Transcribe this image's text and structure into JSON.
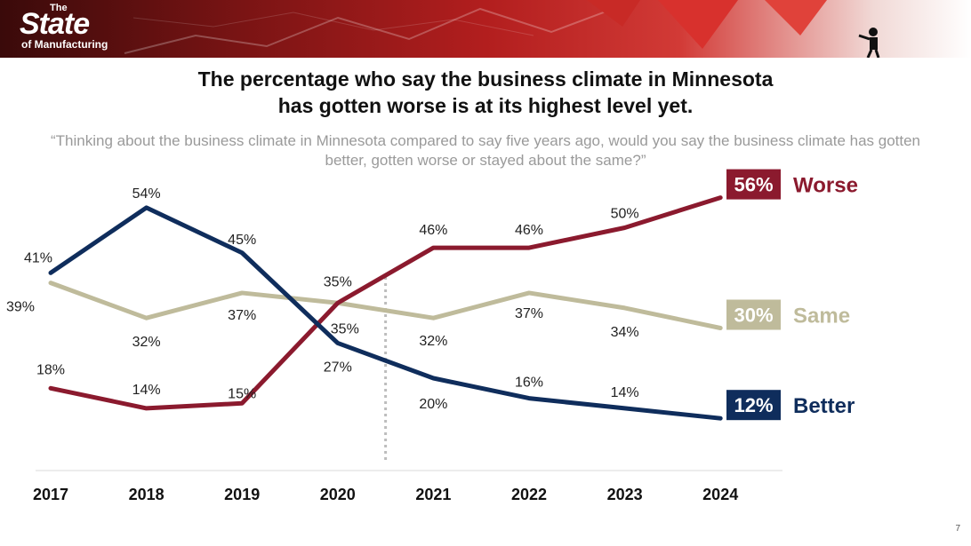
{
  "banner": {
    "logo_the": "The",
    "logo_state": "State",
    "logo_mfg": "of Manufacturing",
    "accent": "#b21e1e"
  },
  "header": {
    "title_line1": "The percentage who say the business climate in Minnesota",
    "title_line2": "has gotten worse is at its highest level yet.",
    "subtitle": "“Thinking about the business climate in Minnesota compared to say five years ago, would you say the business climate has gotten better, gotten worse or stayed about the same?”"
  },
  "page_number": "7",
  "chart_data": {
    "type": "line",
    "categories": [
      "2017",
      "2018",
      "2019",
      "2020",
      "2021",
      "2022",
      "2023",
      "2024"
    ],
    "ylim": [
      0,
      60
    ],
    "divider_between": [
      "2020",
      "2021"
    ],
    "series": [
      {
        "name": "Worse",
        "color": "#8b1a2e",
        "values": [
          18,
          14,
          15,
          35,
          46,
          46,
          50,
          56
        ],
        "labels": [
          "18%",
          "14%",
          "15%",
          "35%",
          "46%",
          "46%",
          "50%",
          "56%"
        ]
      },
      {
        "name": "Same",
        "color": "#bfbb9b",
        "values": [
          39,
          32,
          37,
          35,
          32,
          37,
          34,
          30
        ],
        "labels": [
          "39%",
          "32%",
          "37%",
          "35%",
          "32%",
          "37%",
          "34%",
          "30%"
        ]
      },
      {
        "name": "Better",
        "color": "#0f2d5c",
        "values": [
          41,
          54,
          45,
          27,
          20,
          16,
          14,
          12
        ],
        "labels": [
          "41%",
          "54%",
          "45%",
          "27%",
          "20%",
          "16%",
          "14%",
          "12%"
        ]
      }
    ]
  }
}
